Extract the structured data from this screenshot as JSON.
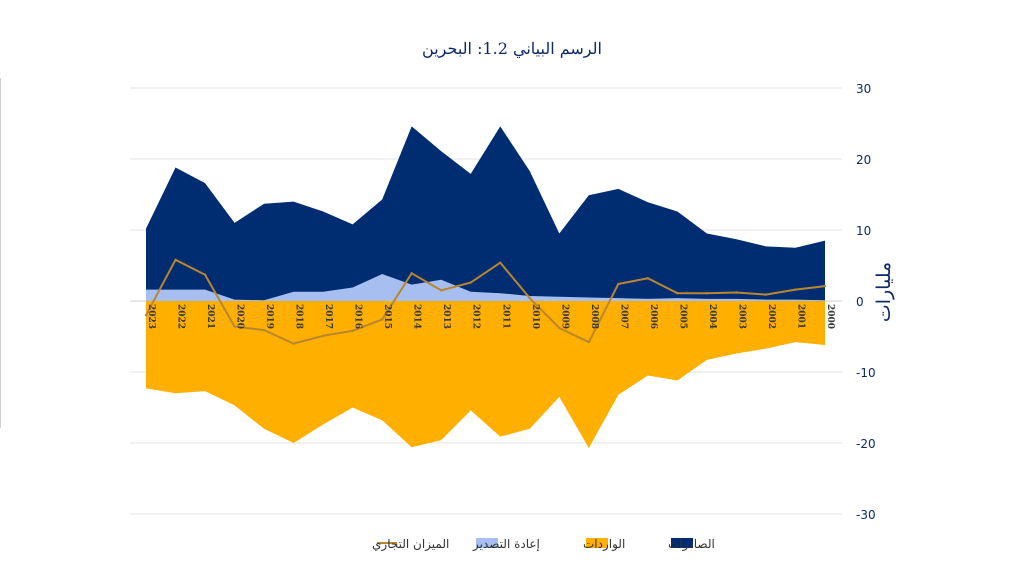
{
  "chart_data": {
    "type": "area",
    "title": "الرسم البياني 1.2: البحرين",
    "ylabel": "مليارات",
    "xlabel": "",
    "ylim": [
      -30,
      30
    ],
    "yticks": [
      30,
      20,
      10,
      0,
      -10,
      -20,
      -30
    ],
    "grid": true,
    "legend_position": "bottom",
    "x_order": "descending-left-to-right",
    "categories": [
      "2023",
      "2022",
      "2021",
      "2020",
      "2019",
      "2018",
      "2017",
      "2016",
      "2015",
      "2014",
      "2013",
      "2012",
      "2011",
      "2010",
      "2009",
      "2008",
      "2007",
      "2006",
      "2005",
      "2004",
      "2003",
      "2002",
      "2001",
      "2000"
    ],
    "series": [
      {
        "name": "الصادرات",
        "kind": "area",
        "color": "#002d72",
        "values": [
          10.2,
          18.8,
          16.6,
          11.0,
          13.7,
          14.0,
          12.6,
          10.8,
          14.3,
          24.6,
          21.1,
          17.9,
          24.6,
          18.3,
          9.5,
          14.9,
          15.8,
          13.9,
          12.6,
          9.5,
          8.7,
          7.7,
          7.5,
          8.5
        ]
      },
      {
        "name": "الواردات",
        "kind": "area",
        "color": "#ffaf00",
        "values": [
          -12.3,
          -13.0,
          -12.7,
          -14.7,
          -18.0,
          -20.0,
          -17.4,
          -15.0,
          -16.8,
          -20.6,
          -19.6,
          -15.4,
          -19.1,
          -18.0,
          -13.5,
          -20.7,
          -13.2,
          -10.5,
          -11.2,
          -8.3,
          -7.4,
          -6.7,
          -5.8,
          -6.2
        ]
      },
      {
        "name": "إعادة التصدير",
        "kind": "area",
        "color": "#a7bff0",
        "values": [
          1.6,
          1.6,
          1.6,
          0.2,
          0.1,
          1.3,
          1.3,
          1.9,
          3.8,
          2.3,
          3.0,
          1.3,
          1.1,
          0.7,
          0.6,
          0.5,
          0.4,
          0.3,
          0.4,
          0.3,
          0.3,
          0.2,
          0.2,
          0.1
        ]
      },
      {
        "name": "الميزان التجاري",
        "kind": "line",
        "color": "#b8862f",
        "values": [
          -2.0,
          5.8,
          3.7,
          -3.6,
          -4.1,
          -6.0,
          -4.9,
          -4.2,
          -2.6,
          3.9,
          1.5,
          2.6,
          5.4,
          0.4,
          -3.8,
          -5.8,
          2.4,
          3.2,
          1.1,
          1.1,
          1.2,
          0.9,
          1.6,
          2.1
        ]
      }
    ],
    "legend_order": [
      "الصادرات",
      "الواردات",
      "إعادة التصدير",
      "الميزان التجاري"
    ]
  }
}
